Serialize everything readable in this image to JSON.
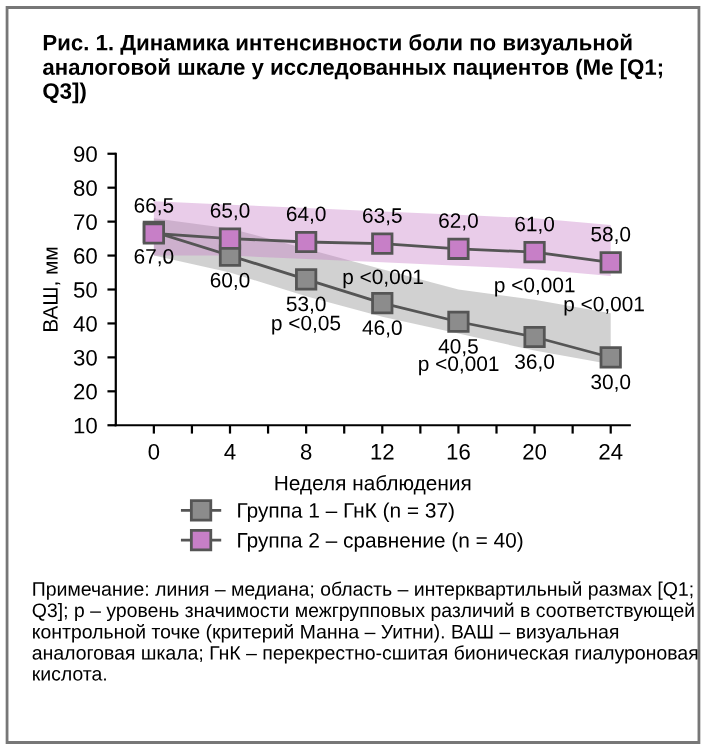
{
  "chart_data": {
    "type": "line",
    "title": "Рис. 1. Динамика интенсивности боли по визуальной аналоговой шкале у исследованных пациентов (Me [Q1; Q3])",
    "xlabel": "Неделя наблюдения",
    "ylabel": "ВАШ, мм",
    "x": [
      0,
      4,
      8,
      12,
      16,
      20,
      24
    ],
    "series": [
      {
        "name": "Группа 1 – ГнК (n = 37)",
        "color": "#8c8c8c",
        "values": [
          67.0,
          60.0,
          53.0,
          46.0,
          40.5,
          36.0,
          30.0
        ],
        "value_labels": [
          "67,0",
          "60,0",
          "53,0",
          "46,0",
          "40,5",
          "36,0",
          "30,0"
        ],
        "lower": [
          60,
          55,
          48,
          42,
          37,
          32,
          28
        ],
        "upper": [
          71,
          68,
          62,
          56,
          50,
          47,
          43
        ]
      },
      {
        "name": "Группа 2 – сравнение (n = 40)",
        "color": "#c77fc7",
        "values": [
          66.5,
          65.0,
          64.0,
          63.5,
          62.0,
          61.0,
          58.0
        ],
        "value_labels": [
          "66,5",
          "65,0",
          "64,0",
          "63,5",
          "62,0",
          "61,0",
          "58,0"
        ],
        "lower": [
          60,
          60,
          59,
          58,
          57,
          56,
          54
        ],
        "upper": [
          76,
          75,
          74,
          73,
          72,
          71,
          69
        ]
      }
    ],
    "xlim": [
      -2,
      25
    ],
    "xticks": [
      0,
      {
        "value": 2,
        "label": null
      },
      4,
      {
        "value": 6,
        "label": null
      },
      8,
      {
        "value": 10,
        "label": null
      },
      12,
      {
        "value": 14,
        "label": null
      },
      16,
      {
        "value": 18,
        "label": null
      },
      20,
      {
        "value": 22,
        "label": null
      },
      24
    ],
    "ylim": [
      10,
      90
    ],
    "yticks": [
      10,
      20,
      30,
      40,
      50,
      60,
      70,
      80,
      90
    ],
    "marker": "square",
    "line_style": "solid",
    "grid": false,
    "legend": "bottom",
    "annotations": [
      "p <0,05",
      "p <0,001",
      "p <0,001",
      "p <0,001",
      "p <0,001",
      "Примечание: линия – медиана; область – интерквартильный размах [Q1; Q3]; p – уровень значимости межгрупповых различий в соответствующей контрольной точке (критерий Манна – Уитни). ВАШ – визуальная аналоговая шкала; ГнК – перекрестно-сшитая бионическая гиалуроновая кислота."
    ]
  }
}
